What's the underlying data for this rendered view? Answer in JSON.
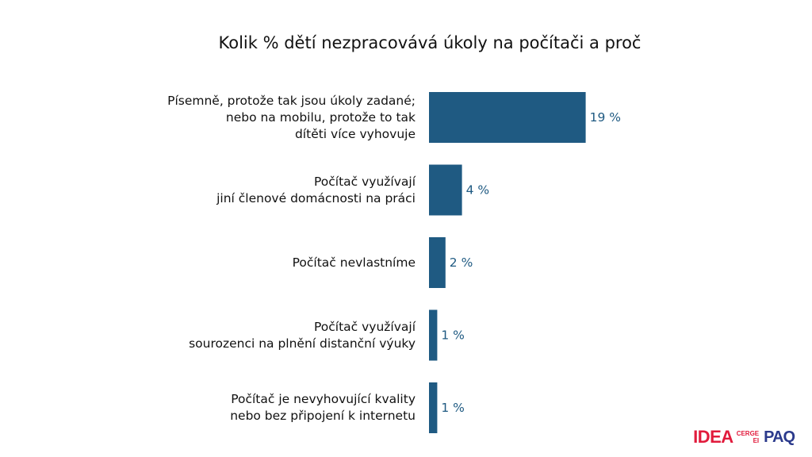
{
  "chart_data": {
    "type": "bar",
    "orientation": "horizontal",
    "title": "Kolik % dětí nezpracovává úkoly na počítači a proč",
    "categories": [
      [
        "Písemně, protože tak jsou úkoly zadané;",
        "nebo na mobilu, protože to tak",
        "dítěti více vyhovuje"
      ],
      [
        "Počítač využívají",
        "jiní členové domácnosti na práci"
      ],
      [
        "Počítač nevlastníme"
      ],
      [
        "Počítač využívají",
        "sourozenci na plnění distanční výuky"
      ],
      [
        "Počítač je nevyhovující kvality",
        "nebo bez připojení k internetu"
      ]
    ],
    "values": [
      19,
      4,
      2,
      1,
      1
    ],
    "value_labels": [
      "19 %",
      "4 %",
      "2 %",
      "1 %",
      "1 %"
    ],
    "unit": "%",
    "bar_color": "#1f5a82",
    "value_label_color": "#1f5a82",
    "grid": false,
    "legend": "none"
  },
  "logos": {
    "idea": "IDEA",
    "cerge_top": "CERGE",
    "cerge_bottom": "EI",
    "paq": "PAQ",
    "brand_red": "#e11b3c",
    "brand_blue": "#2b3a8c"
  }
}
